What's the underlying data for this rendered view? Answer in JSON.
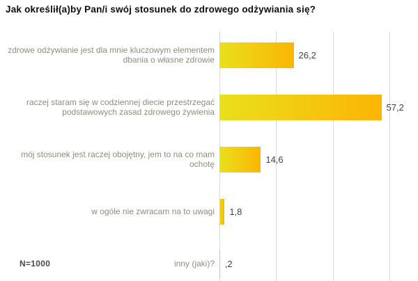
{
  "title": "Jak określił(a)by Pan/i swój stosunek do zdrowego odżywiania się?",
  "footer": {
    "n_label": "N=1000"
  },
  "colors": {
    "bar_gradient_start": "#e9e01c",
    "bar_gradient_end": "#fcb405",
    "gridline": "#d9d9d9",
    "category_label": "#8e8d80",
    "value_label": "#3f3f3f",
    "title": "#0d0d0d",
    "background": "#ffffff"
  },
  "chart_data": {
    "type": "bar",
    "orientation": "horizontal",
    "title": "Jak określił(a)by Pan/i swój stosunek do zdrowego odżywiania się?",
    "categories": [
      "zdrowe odżywianie jest dla mnie kluczowym elementem dbania o własne zdrowie",
      "raczej staram się w codziennej diecie przestrzegać podstawowych zasad zdrowego żywienia",
      "mój stosunek jest raczej obojętny, jem to na co mam ochotę",
      "w ogóle nie zwracam na to uwagi",
      "inny (jaki)?"
    ],
    "values": [
      26.2,
      57.2,
      14.6,
      1.8,
      0.2
    ],
    "value_labels": [
      "26,2",
      "57,2",
      "14,6",
      "1,8",
      ",2"
    ],
    "xlabel": "",
    "ylabel": "",
    "xlim": [
      0,
      70
    ],
    "gridline_values": [
      0,
      20,
      40,
      60
    ],
    "grid": "vertical-only",
    "legend": "none",
    "annotation": "N=1000"
  }
}
